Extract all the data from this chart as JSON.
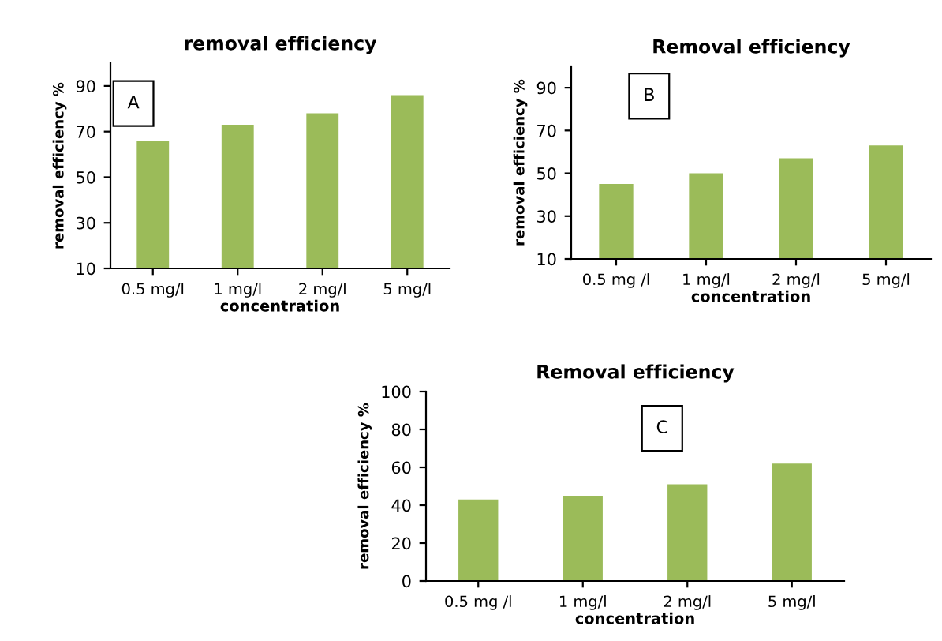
{
  "chart_data": [
    {
      "type": "bar",
      "title": "removal efficiency",
      "xlabel": "concentration",
      "ylabel": "removal efficiency %",
      "categories": [
        "0.5 mg/l",
        "1 mg/l",
        "2 mg/l",
        "5 mg/l"
      ],
      "values": [
        66,
        73,
        78,
        86
      ],
      "color": "#9bbb59",
      "ylim": [
        10,
        100
      ],
      "yticks": [
        10,
        30,
        50,
        70,
        90
      ],
      "grid": false,
      "legend": false,
      "annotations": [
        "A"
      ]
    },
    {
      "type": "bar",
      "title": "Removal efficiency",
      "xlabel": "concentration",
      "ylabel": "removal efficiency %",
      "categories": [
        "0.5 mg /l",
        "1 mg/l",
        "2 mg/l",
        "5 mg/l"
      ],
      "values": [
        45,
        50,
        57,
        63
      ],
      "color": "#9bbb59",
      "ylim": [
        10,
        100
      ],
      "yticks": [
        10,
        30,
        50,
        70,
        90
      ],
      "grid": false,
      "legend": false,
      "annotations": [
        "B"
      ]
    },
    {
      "type": "bar",
      "title": "Removal efficiency",
      "xlabel": "concentration",
      "ylabel": "removal efficiency %",
      "categories": [
        "0.5 mg /l",
        "1 mg/l",
        "2 mg/l",
        "5 mg/l"
      ],
      "values": [
        43,
        45,
        51,
        62
      ],
      "color": "#9bbb59",
      "ylim": [
        0,
        100
      ],
      "yticks": [
        0,
        20,
        40,
        60,
        80,
        100
      ],
      "grid": false,
      "legend": false,
      "annotations": [
        "C"
      ]
    }
  ]
}
